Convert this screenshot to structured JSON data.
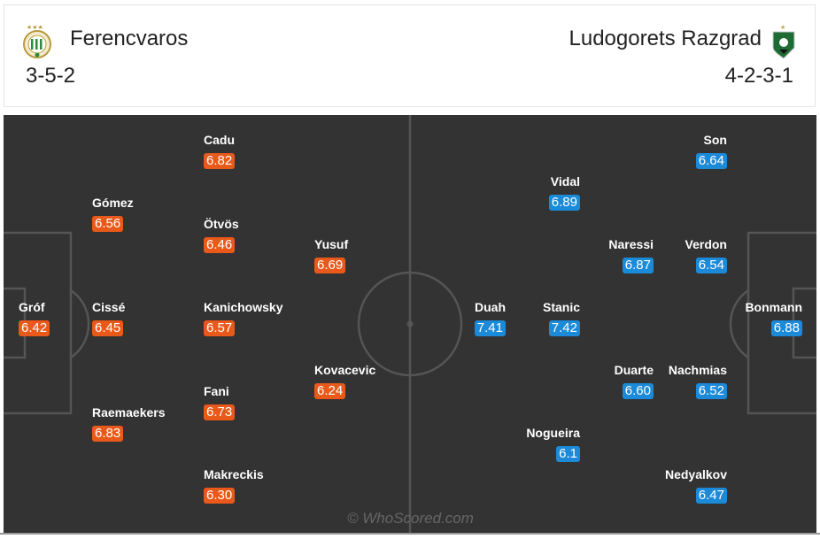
{
  "header": {
    "home": {
      "name": "Ferencvaros",
      "formation": "3-5-2",
      "crest_icon": "ferencvaros-crest-icon"
    },
    "away": {
      "name": "Ludogorets Razgrad",
      "formation": "4-2-3-1",
      "crest_icon": "ludogorets-crest-icon"
    }
  },
  "colors": {
    "home_rating": "#e8591a",
    "away_rating": "#1b8ad8",
    "pitch": "#333333",
    "lines": "#555555"
  },
  "home_players": [
    {
      "name": "Gróf",
      "rating": "6.42"
    },
    {
      "name": "Gómez",
      "rating": "6.56"
    },
    {
      "name": "Cissé",
      "rating": "6.45"
    },
    {
      "name": "Raemaekers",
      "rating": "6.83"
    },
    {
      "name": "Cadu",
      "rating": "6.82"
    },
    {
      "name": "Ötvös",
      "rating": "6.46"
    },
    {
      "name": "Kanichowsky",
      "rating": "6.57"
    },
    {
      "name": "Fani",
      "rating": "6.73"
    },
    {
      "name": "Makreckis",
      "rating": "6.30"
    },
    {
      "name": "Yusuf",
      "rating": "6.69"
    },
    {
      "name": "Kovacevic",
      "rating": "6.24"
    }
  ],
  "away_players": [
    {
      "name": "Son",
      "rating": "6.64"
    },
    {
      "name": "Vidal",
      "rating": "6.89"
    },
    {
      "name": "Naressi",
      "rating": "6.87"
    },
    {
      "name": "Verdon",
      "rating": "6.54"
    },
    {
      "name": "Duah",
      "rating": "7.41"
    },
    {
      "name": "Stanic",
      "rating": "7.42"
    },
    {
      "name": "Bonmann",
      "rating": "6.88"
    },
    {
      "name": "Duarte",
      "rating": "6.60"
    },
    {
      "name": "Nachmias",
      "rating": "6.52"
    },
    {
      "name": "Nogueira",
      "rating": "6.1"
    },
    {
      "name": "Nedyalkov",
      "rating": "6.47"
    }
  ],
  "watermark": "© WhoScored.com"
}
